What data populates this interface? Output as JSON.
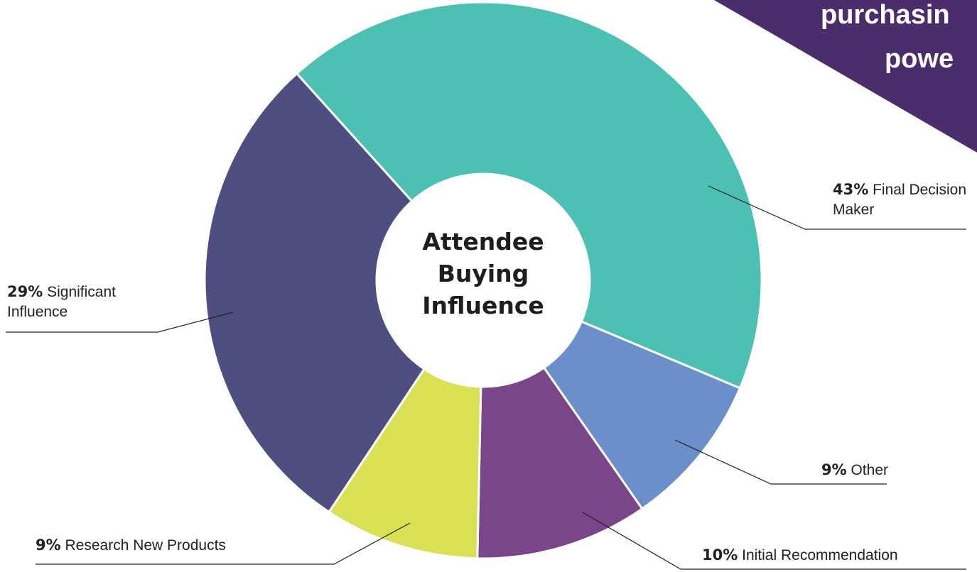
{
  "chart_data": {
    "type": "pie",
    "donut": true,
    "title": "Attendee Buying Influence",
    "categories": [
      "Final Decision Maker",
      "Other",
      "Initial Recommendation",
      "Research New Products",
      "Significant Influence"
    ],
    "values": [
      43,
      9,
      10,
      9,
      29
    ],
    "value_labels": [
      "43%",
      "9%",
      "10%",
      "9%",
      "29%"
    ],
    "colors": [
      "#4cc0b2",
      "#6a8fc9",
      "#7a4589",
      "#d9e054",
      "#4e4f80"
    ]
  },
  "corner_text": [
    "purchasin",
    "powe"
  ]
}
